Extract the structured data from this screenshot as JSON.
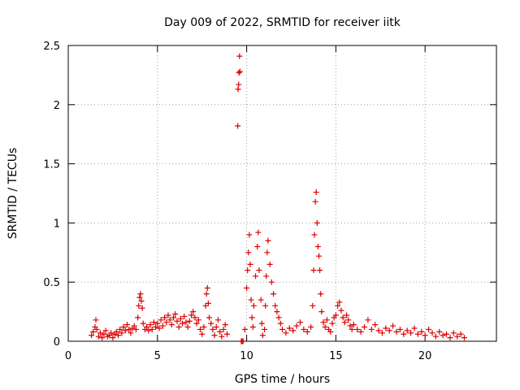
{
  "chart_data": {
    "type": "scatter",
    "title": "Day 009 of 2022, SRMTID for receiver iitk",
    "xlabel": "GPS time / hours",
    "ylabel": "SRMTID / TECUs",
    "xlim": [
      0,
      24
    ],
    "ylim": [
      0,
      2.5
    ],
    "xticks": [
      0,
      5,
      10,
      15,
      20
    ],
    "yticks": [
      0,
      0.5,
      1,
      1.5,
      2,
      2.5
    ],
    "xtick_labels": [
      "0",
      "5",
      "10",
      "15",
      "20"
    ],
    "ytick_labels": [
      "0",
      "0.5",
      "1",
      "1.5",
      "2",
      "2.5"
    ],
    "grid": true,
    "marker": "+",
    "color": "#dd0000",
    "series": [
      {
        "points": [
          [
            1.3,
            0.05
          ],
          [
            1.4,
            0.08
          ],
          [
            1.5,
            0.12
          ],
          [
            1.55,
            0.18
          ],
          [
            1.6,
            0.1
          ],
          [
            1.7,
            0.04
          ],
          [
            1.8,
            0.07
          ],
          [
            1.9,
            0.03
          ],
          [
            2.0,
            0.06
          ],
          [
            2.1,
            0.09
          ],
          [
            2.2,
            0.04
          ],
          [
            2.3,
            0.05
          ],
          [
            2.4,
            0.07
          ],
          [
            2.5,
            0.03
          ],
          [
            2.6,
            0.06
          ],
          [
            2.7,
            0.08
          ],
          [
            2.8,
            0.05
          ],
          [
            2.9,
            0.1
          ],
          [
            3.0,
            0.07
          ],
          [
            3.1,
            0.12
          ],
          [
            3.2,
            0.09
          ],
          [
            3.3,
            0.14
          ],
          [
            3.4,
            0.1
          ],
          [
            3.5,
            0.07
          ],
          [
            3.6,
            0.11
          ],
          [
            3.7,
            0.13
          ],
          [
            3.8,
            0.1
          ],
          [
            3.9,
            0.2
          ],
          [
            3.95,
            0.3
          ],
          [
            4.0,
            0.37
          ],
          [
            4.05,
            0.4
          ],
          [
            4.1,
            0.34
          ],
          [
            4.15,
            0.28
          ],
          [
            4.2,
            0.15
          ],
          [
            4.3,
            0.1
          ],
          [
            4.4,
            0.12
          ],
          [
            4.5,
            0.09
          ],
          [
            4.6,
            0.14
          ],
          [
            4.7,
            0.1
          ],
          [
            4.8,
            0.16
          ],
          [
            4.9,
            0.12
          ],
          [
            5.0,
            0.15
          ],
          [
            5.1,
            0.11
          ],
          [
            5.2,
            0.18
          ],
          [
            5.3,
            0.13
          ],
          [
            5.4,
            0.2
          ],
          [
            5.5,
            0.16
          ],
          [
            5.6,
            0.22
          ],
          [
            5.7,
            0.18
          ],
          [
            5.8,
            0.14
          ],
          [
            5.9,
            0.2
          ],
          [
            6.0,
            0.23
          ],
          [
            6.1,
            0.17
          ],
          [
            6.2,
            0.12
          ],
          [
            6.3,
            0.19
          ],
          [
            6.4,
            0.15
          ],
          [
            6.5,
            0.21
          ],
          [
            6.6,
            0.16
          ],
          [
            6.7,
            0.12
          ],
          [
            6.8,
            0.17
          ],
          [
            6.9,
            0.22
          ],
          [
            7.0,
            0.25
          ],
          [
            7.1,
            0.2
          ],
          [
            7.2,
            0.15
          ],
          [
            7.3,
            0.18
          ],
          [
            7.4,
            0.1
          ],
          [
            7.5,
            0.06
          ],
          [
            7.6,
            0.12
          ],
          [
            7.7,
            0.3
          ],
          [
            7.75,
            0.4
          ],
          [
            7.8,
            0.45
          ],
          [
            7.85,
            0.32
          ],
          [
            7.9,
            0.2
          ],
          [
            8.0,
            0.15
          ],
          [
            8.1,
            0.1
          ],
          [
            8.2,
            0.05
          ],
          [
            8.3,
            0.12
          ],
          [
            8.4,
            0.18
          ],
          [
            8.5,
            0.08
          ],
          [
            8.6,
            0.04
          ],
          [
            8.7,
            0.1
          ],
          [
            8.8,
            0.14
          ],
          [
            8.9,
            0.06
          ],
          [
            9.5,
            1.82
          ],
          [
            9.52,
            2.13
          ],
          [
            9.55,
            2.17
          ],
          [
            9.57,
            2.27
          ],
          [
            9.6,
            2.41
          ],
          [
            9.62,
            2.28
          ],
          [
            9.7,
            0.0
          ],
          [
            9.75,
            0.0
          ],
          [
            9.8,
            0.0
          ],
          [
            9.9,
            0.1
          ],
          [
            10.0,
            0.45
          ],
          [
            10.05,
            0.6
          ],
          [
            10.1,
            0.75
          ],
          [
            10.15,
            0.9
          ],
          [
            10.2,
            0.65
          ],
          [
            10.25,
            0.35
          ],
          [
            10.3,
            0.2
          ],
          [
            10.35,
            0.12
          ],
          [
            10.4,
            0.3
          ],
          [
            10.5,
            0.55
          ],
          [
            10.6,
            0.8
          ],
          [
            10.65,
            0.92
          ],
          [
            10.7,
            0.6
          ],
          [
            10.8,
            0.35
          ],
          [
            10.85,
            0.15
          ],
          [
            10.9,
            0.05
          ],
          [
            11.0,
            0.1
          ],
          [
            11.05,
            0.3
          ],
          [
            11.1,
            0.55
          ],
          [
            11.15,
            0.75
          ],
          [
            11.2,
            0.85
          ],
          [
            11.3,
            0.65
          ],
          [
            11.4,
            0.5
          ],
          [
            11.5,
            0.4
          ],
          [
            11.6,
            0.3
          ],
          [
            11.7,
            0.25
          ],
          [
            11.8,
            0.2
          ],
          [
            11.9,
            0.15
          ],
          [
            12.0,
            0.1
          ],
          [
            12.2,
            0.07
          ],
          [
            12.4,
            0.11
          ],
          [
            12.6,
            0.09
          ],
          [
            12.8,
            0.13
          ],
          [
            13.0,
            0.16
          ],
          [
            13.2,
            0.1
          ],
          [
            13.4,
            0.08
          ],
          [
            13.6,
            0.12
          ],
          [
            13.7,
            0.3
          ],
          [
            13.75,
            0.6
          ],
          [
            13.8,
            0.9
          ],
          [
            13.85,
            1.18
          ],
          [
            13.9,
            1.26
          ],
          [
            13.95,
            1.0
          ],
          [
            14.0,
            0.8
          ],
          [
            14.05,
            0.72
          ],
          [
            14.1,
            0.6
          ],
          [
            14.15,
            0.4
          ],
          [
            14.2,
            0.25
          ],
          [
            14.3,
            0.16
          ],
          [
            14.4,
            0.12
          ],
          [
            14.5,
            0.18
          ],
          [
            14.6,
            0.1
          ],
          [
            14.7,
            0.08
          ],
          [
            14.8,
            0.15
          ],
          [
            14.9,
            0.2
          ],
          [
            15.0,
            0.22
          ],
          [
            15.1,
            0.3
          ],
          [
            15.2,
            0.33
          ],
          [
            15.3,
            0.26
          ],
          [
            15.4,
            0.2
          ],
          [
            15.5,
            0.16
          ],
          [
            15.6,
            0.22
          ],
          [
            15.7,
            0.18
          ],
          [
            15.8,
            0.13
          ],
          [
            15.9,
            0.1
          ],
          [
            16.0,
            0.14
          ],
          [
            16.2,
            0.1
          ],
          [
            16.4,
            0.08
          ],
          [
            16.6,
            0.12
          ],
          [
            16.8,
            0.18
          ],
          [
            17.0,
            0.1
          ],
          [
            17.2,
            0.14
          ],
          [
            17.4,
            0.09
          ],
          [
            17.6,
            0.07
          ],
          [
            17.8,
            0.11
          ],
          [
            18.0,
            0.09
          ],
          [
            18.2,
            0.13
          ],
          [
            18.4,
            0.08
          ],
          [
            18.6,
            0.1
          ],
          [
            18.8,
            0.06
          ],
          [
            19.0,
            0.09
          ],
          [
            19.2,
            0.07
          ],
          [
            19.4,
            0.11
          ],
          [
            19.6,
            0.06
          ],
          [
            19.8,
            0.08
          ],
          [
            20.0,
            0.05
          ],
          [
            20.2,
            0.1
          ],
          [
            20.4,
            0.07
          ],
          [
            20.6,
            0.04
          ],
          [
            20.8,
            0.08
          ],
          [
            21.0,
            0.05
          ],
          [
            21.2,
            0.06
          ],
          [
            21.4,
            0.03
          ],
          [
            21.6,
            0.07
          ],
          [
            21.8,
            0.04
          ],
          [
            22.0,
            0.06
          ],
          [
            22.2,
            0.03
          ]
        ]
      }
    ]
  }
}
